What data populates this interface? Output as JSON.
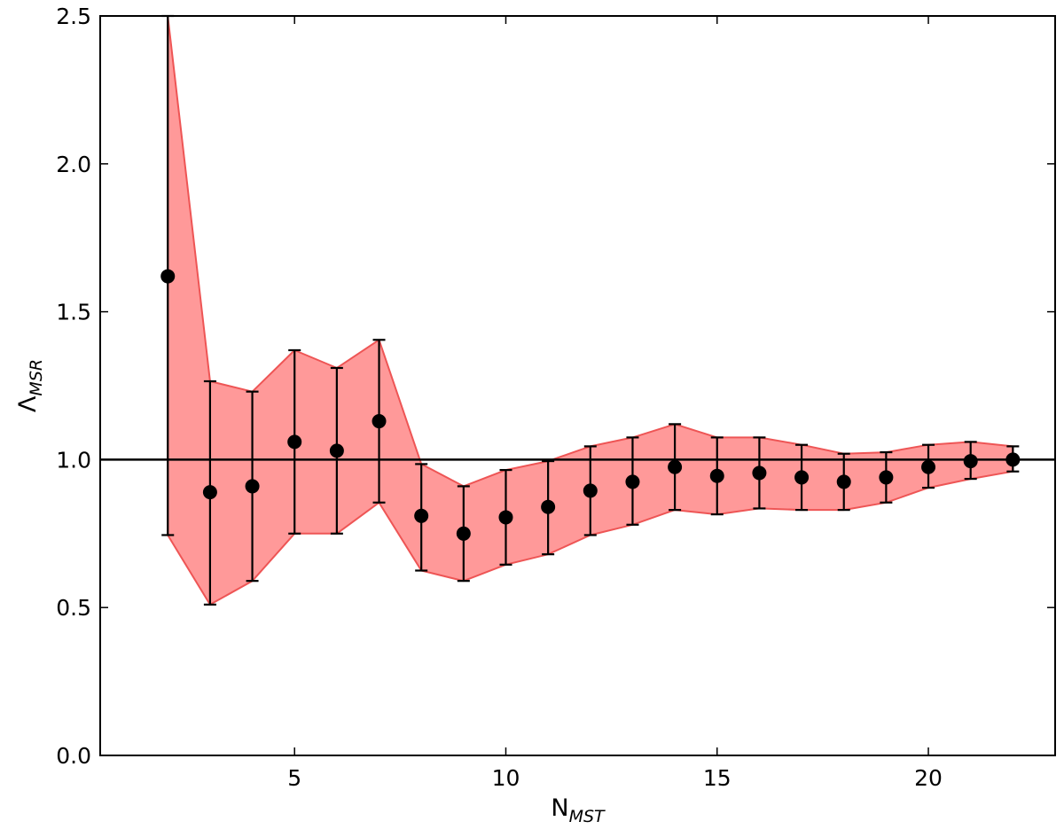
{
  "chart_data": {
    "type": "scatter",
    "xlabel": {
      "base": "N",
      "sub": "MST"
    },
    "ylabel": {
      "base": "Λ",
      "sub": "MSR"
    },
    "xlim": [
      0.4,
      23
    ],
    "ylim": [
      0,
      2.5
    ],
    "xticks": [
      5,
      10,
      15,
      20
    ],
    "yticks": [
      0.0,
      0.5,
      1.0,
      1.5,
      2.0,
      2.5
    ],
    "xtick_labels": [
      "5",
      "10",
      "15",
      "20"
    ],
    "ytick_labels": [
      "0.0",
      "0.5",
      "1.0",
      "1.5",
      "2.0",
      "2.5"
    ],
    "reference_line_y": 1.0,
    "colors": {
      "band_fill": "#ff9999",
      "band_edge": "#ee5555",
      "markers": "#000000"
    },
    "x": [
      2,
      3,
      4,
      5,
      6,
      7,
      8,
      9,
      10,
      11,
      12,
      13,
      14,
      15,
      16,
      17,
      18,
      19,
      20,
      21,
      22
    ],
    "y": [
      1.62,
      0.89,
      0.91,
      1.06,
      1.03,
      1.13,
      0.81,
      0.75,
      0.805,
      0.84,
      0.895,
      0.925,
      0.975,
      0.945,
      0.955,
      0.94,
      0.925,
      0.94,
      0.975,
      0.995,
      1.0
    ],
    "upper": [
      2.5,
      1.265,
      1.23,
      1.37,
      1.31,
      1.405,
      0.985,
      0.91,
      0.965,
      0.995,
      1.045,
      1.075,
      1.12,
      1.075,
      1.075,
      1.05,
      1.02,
      1.025,
      1.05,
      1.06,
      1.045
    ],
    "lower": [
      0.745,
      0.51,
      0.59,
      0.75,
      0.75,
      0.855,
      0.625,
      0.59,
      0.645,
      0.68,
      0.745,
      0.78,
      0.83,
      0.815,
      0.835,
      0.83,
      0.83,
      0.855,
      0.905,
      0.935,
      0.96
    ]
  }
}
